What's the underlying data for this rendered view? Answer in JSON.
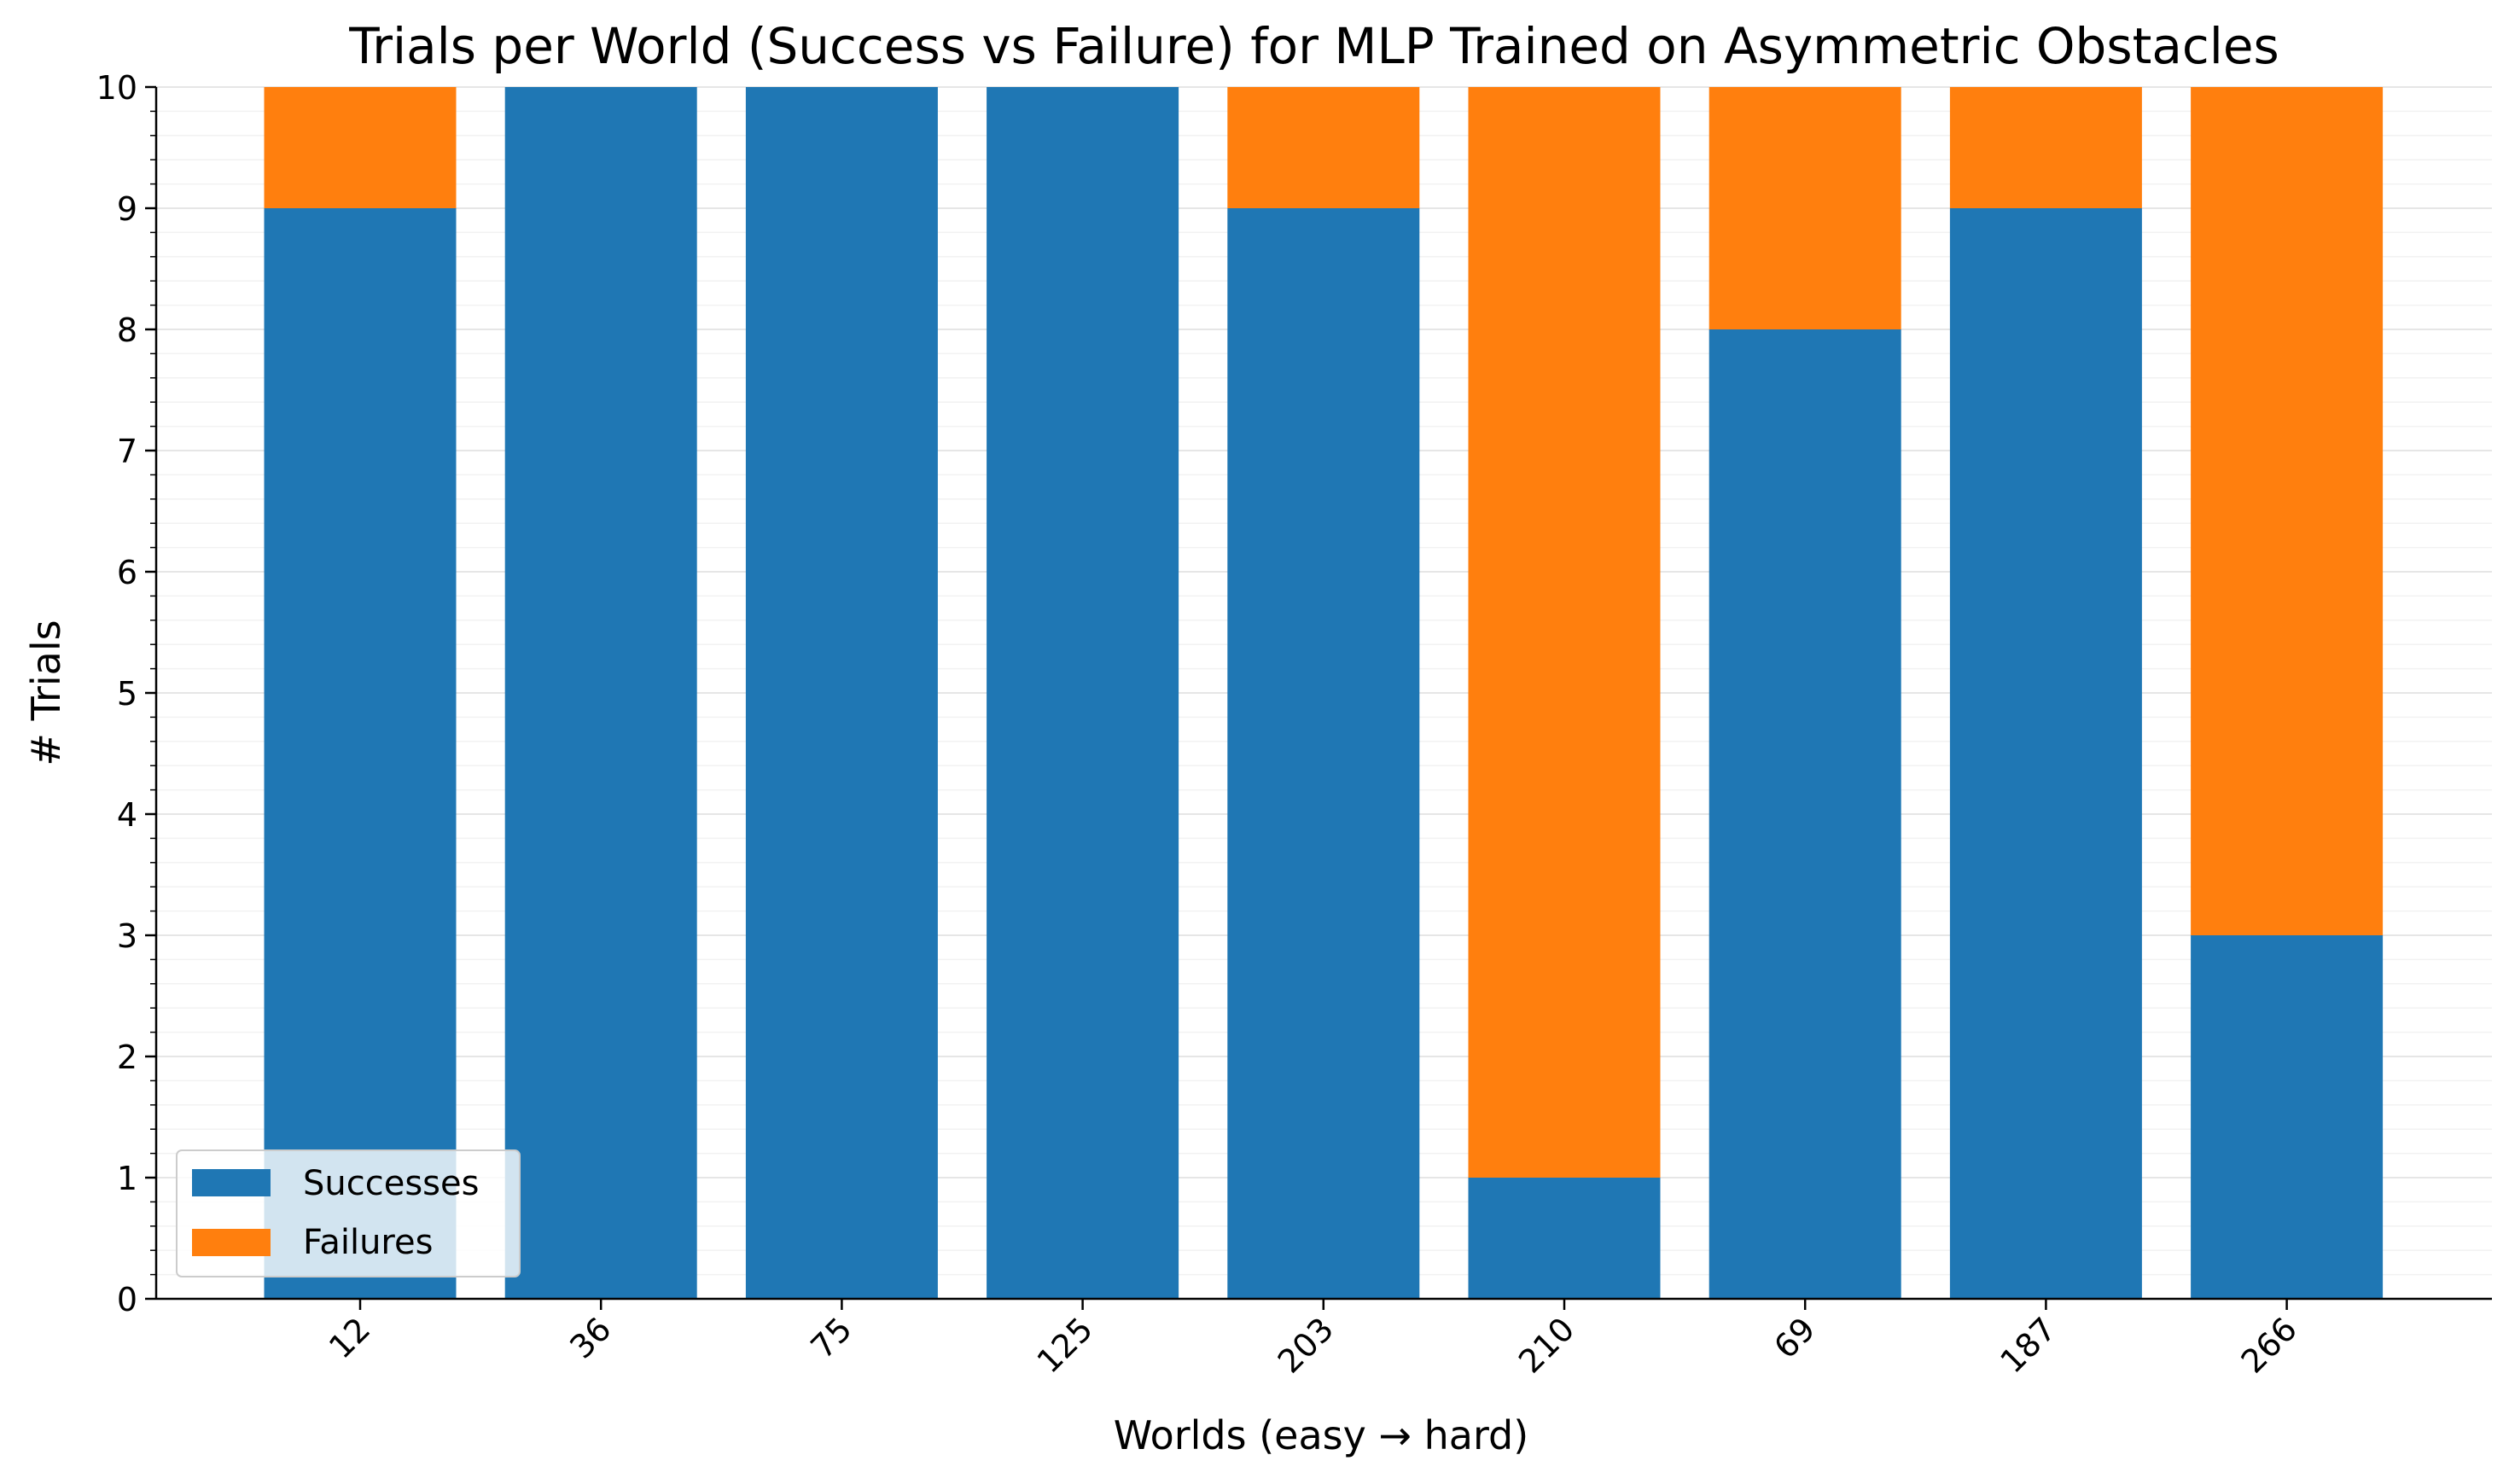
{
  "chart_data": {
    "type": "bar",
    "stacked": true,
    "title": "Trials per World (Success vs Failure) for MLP Trained on Asymmetric Obstacles",
    "xlabel": "Worlds (easy → hard)",
    "ylabel": "# Trials",
    "categories": [
      "12",
      "36",
      "75",
      "125",
      "203",
      "210",
      "69",
      "187",
      "266"
    ],
    "ylim": [
      0,
      10
    ],
    "yticks": [
      0,
      1,
      2,
      3,
      4,
      5,
      6,
      7,
      8,
      9,
      10
    ],
    "grid": true,
    "legend_position": "lower-left",
    "series": [
      {
        "name": "Successes",
        "color": "#1f77b4",
        "values": [
          9,
          10,
          10,
          10,
          9,
          1,
          8,
          9,
          3
        ]
      },
      {
        "name": "Failures",
        "color": "#ff7f0e",
        "values": [
          1,
          0,
          0,
          0,
          1,
          9,
          2,
          1,
          7
        ]
      }
    ]
  }
}
